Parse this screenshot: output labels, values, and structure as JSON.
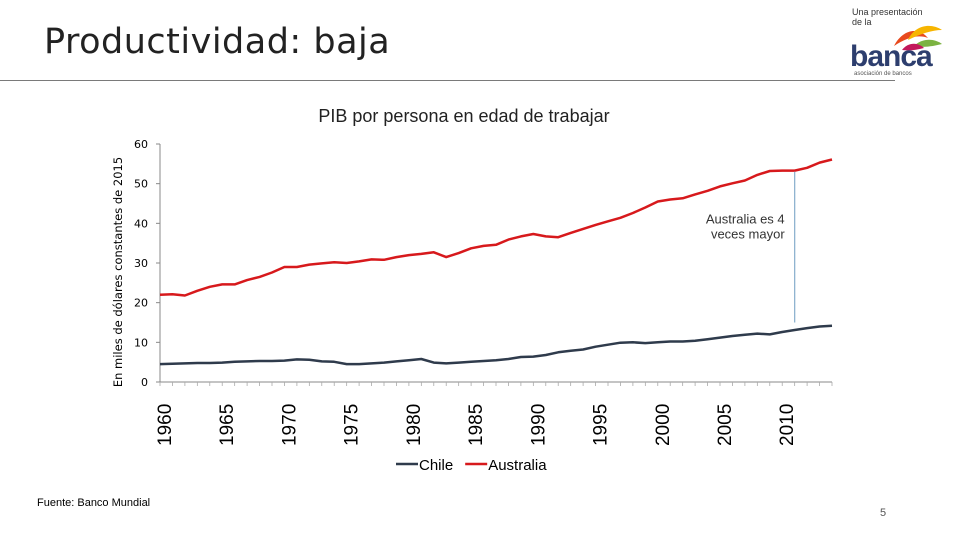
{
  "slide": {
    "title": "Productividad: baja",
    "source": "Fuente: Banco Mundial",
    "page_number": "5"
  },
  "logo": {
    "tagline": "Una presentación de la",
    "word": "banca",
    "subtitle": "asociación de bancos"
  },
  "colors": {
    "chile": "#2f3b4c",
    "australia": "#d7191c",
    "annotation_line": "#8fb3cf"
  },
  "chart_data": {
    "type": "line",
    "title": "PIB por persona en edad de trabajar",
    "ylabel": "En miles de dólares constantes de 2015",
    "xlabel": "",
    "ylim": [
      0,
      60
    ],
    "yticks": [
      0,
      10,
      20,
      30,
      40,
      50,
      60
    ],
    "xlim": [
      1960,
      2014
    ],
    "xticks": [
      1960,
      1965,
      1970,
      1975,
      1980,
      1985,
      1990,
      1995,
      2000,
      2005,
      2010
    ],
    "grid": false,
    "legend_position": "bottom",
    "series": [
      {
        "name": "Chile",
        "x": [
          1960,
          1961,
          1962,
          1963,
          1964,
          1965,
          1966,
          1967,
          1968,
          1969,
          1970,
          1971,
          1972,
          1973,
          1974,
          1975,
          1976,
          1977,
          1978,
          1979,
          1980,
          1981,
          1982,
          1983,
          1984,
          1985,
          1986,
          1987,
          1988,
          1989,
          1990,
          1991,
          1992,
          1993,
          1994,
          1995,
          1996,
          1997,
          1998,
          1999,
          2000,
          2001,
          2002,
          2003,
          2004,
          2005,
          2006,
          2007,
          2008,
          2009,
          2010,
          2011,
          2012,
          2013,
          2014
        ],
        "values": [
          4.5,
          4.6,
          4.7,
          4.8,
          4.8,
          4.9,
          5.1,
          5.2,
          5.3,
          5.3,
          5.4,
          5.7,
          5.6,
          5.2,
          5.1,
          4.5,
          4.5,
          4.7,
          4.9,
          5.2,
          5.5,
          5.8,
          4.9,
          4.7,
          4.9,
          5.1,
          5.3,
          5.5,
          5.8,
          6.3,
          6.4,
          6.8,
          7.5,
          7.9,
          8.2,
          8.9,
          9.4,
          9.9,
          10.0,
          9.8,
          10.0,
          10.2,
          10.2,
          10.4,
          10.8,
          11.2,
          11.6,
          11.9,
          12.2,
          12.0,
          12.6,
          13.1,
          13.6,
          14.0,
          14.2
        ]
      },
      {
        "name": "Australia",
        "x": [
          1960,
          1961,
          1962,
          1963,
          1964,
          1965,
          1966,
          1967,
          1968,
          1969,
          1970,
          1971,
          1972,
          1973,
          1974,
          1975,
          1976,
          1977,
          1978,
          1979,
          1980,
          1981,
          1982,
          1983,
          1984,
          1985,
          1986,
          1987,
          1988,
          1989,
          1990,
          1991,
          1992,
          1993,
          1994,
          1995,
          1996,
          1997,
          1998,
          1999,
          2000,
          2001,
          2002,
          2003,
          2004,
          2005,
          2006,
          2007,
          2008,
          2009,
          2010,
          2011,
          2012,
          2013,
          2014
        ],
        "values": [
          22.0,
          22.1,
          21.8,
          23.0,
          24.0,
          24.6,
          24.6,
          25.7,
          26.5,
          27.6,
          29.0,
          29.0,
          29.6,
          29.9,
          30.2,
          30.0,
          30.4,
          30.9,
          30.8,
          31.5,
          32.0,
          32.3,
          32.7,
          31.5,
          32.5,
          33.7,
          34.3,
          34.6,
          35.9,
          36.7,
          37.3,
          36.7,
          36.5,
          37.6,
          38.6,
          39.6,
          40.5,
          41.4,
          42.6,
          44.0,
          45.5,
          46.0,
          46.3,
          47.3,
          48.2,
          49.3,
          50.1,
          50.8,
          52.2,
          53.2,
          53.3,
          53.3,
          54.0,
          55.3,
          56.1
        ]
      }
    ],
    "annotations": [
      {
        "text_line1": "Australia es 4",
        "text_line2": "veces mayor",
        "x": 2011,
        "y_from": 15,
        "y_to": 53
      }
    ]
  }
}
